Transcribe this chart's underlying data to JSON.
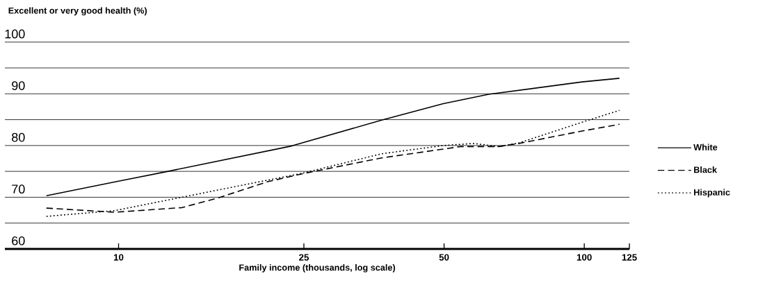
{
  "chart_data": {
    "type": "line",
    "ylabel": "Excellent or very good health (%)",
    "xlabel": "Family income (thousands, log scale)",
    "log": "x",
    "grid": "y",
    "legend": "right",
    "marker": "none",
    "xlim": [
      5.7,
      125
    ],
    "xticks": [
      10,
      25,
      50,
      100,
      125
    ],
    "ylim": [
      60,
      100
    ],
    "yticks": [
      60,
      {
        "value": 65,
        "label": null
      },
      70,
      {
        "value": 75,
        "label": null
      },
      80,
      {
        "value": 85,
        "label": null
      },
      90,
      {
        "value": 95,
        "label": null
      },
      100
    ],
    "series": [
      {
        "name": "White",
        "color": "#000000",
        "line_style": "solid",
        "x": [
          7.0,
          10,
          12.6,
          23.5,
          36.7,
          49.8,
          62.3,
          98.9,
          119
        ],
        "values": [
          70.3,
          73.1,
          74.9,
          79.9,
          84.9,
          88.1,
          89.9,
          92.3,
          93.0
        ]
      },
      {
        "name": "Black",
        "color": "#000000",
        "line_style": "dashed",
        "x": [
          7.0,
          9.8,
          13.7,
          16.4,
          20.9,
          25,
          36.7,
          54.3,
          65.6,
          72.4,
          98.9,
          119
        ],
        "values": [
          67.9,
          67.1,
          68.0,
          69.9,
          73.0,
          74.6,
          77.6,
          79.8,
          79.8,
          80.4,
          82.8,
          84.1
        ]
      },
      {
        "name": "Hispanic",
        "color": "#000000",
        "line_style": "dotted",
        "x": [
          7.0,
          9.8,
          13.5,
          24.7,
          36.7,
          49.8,
          57.9,
          65.6,
          72.4,
          98.9,
          119
        ],
        "values": [
          66.3,
          67.4,
          69.9,
          74.6,
          78.4,
          80.0,
          80.4,
          79.8,
          80.5,
          84.5,
          86.8
        ]
      }
    ]
  }
}
